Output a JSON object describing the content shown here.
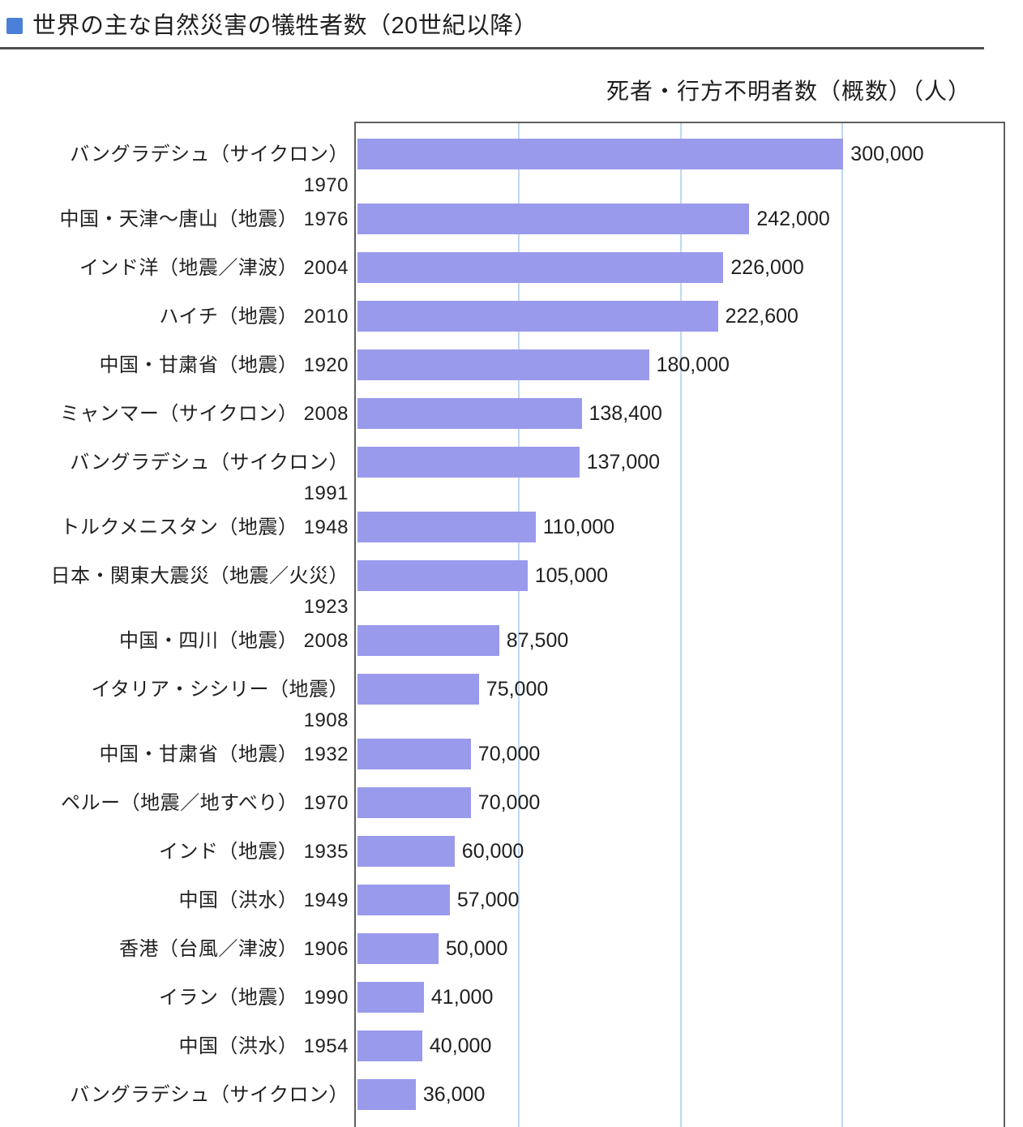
{
  "page": {
    "title": "世界の主な自然災害の犠牲者数（20世紀以降）",
    "axis_title": "死者・行方不明者数（概数）（人）"
  },
  "colors": {
    "bar": "#9a9aec",
    "gridline": "#bed9f3",
    "frame": "#606060",
    "title_bullet": "#4a80d8",
    "title_underline": "#4f4f4f",
    "text": "#212121"
  },
  "chart_data": {
    "type": "bar",
    "orientation": "horizontal",
    "title": "世界の主な自然災害の犠牲者数（20世紀以降）",
    "value_axis_label": "死者・行方不明者数（概数）（人）",
    "xlim": [
      0,
      400000
    ],
    "gridline_interval": 100000,
    "grid": true,
    "rows": [
      {
        "label": "バングラデシュ（サイクロン）",
        "year": "1970",
        "value": 300000,
        "value_label": "300,000",
        "two_line": true
      },
      {
        "label": "中国・天津〜唐山（地震）",
        "year": "1976",
        "value": 242000,
        "value_label": "242,000",
        "two_line": false
      },
      {
        "label": "インド洋（地震／津波）",
        "year": "2004",
        "value": 226000,
        "value_label": "226,000",
        "two_line": false
      },
      {
        "label": "ハイチ（地震）",
        "year": "2010",
        "value": 222600,
        "value_label": "222,600",
        "two_line": false
      },
      {
        "label": "中国・甘粛省（地震）",
        "year": "1920",
        "value": 180000,
        "value_label": "180,000",
        "two_line": false
      },
      {
        "label": "ミャンマー（サイクロン）",
        "year": "2008",
        "value": 138400,
        "value_label": "138,400",
        "two_line": false
      },
      {
        "label": "バングラデシュ（サイクロン）",
        "year": "1991",
        "value": 137000,
        "value_label": "137,000",
        "two_line": true
      },
      {
        "label": "トルクメニスタン（地震）",
        "year": "1948",
        "value": 110000,
        "value_label": "110,000",
        "two_line": false
      },
      {
        "label": "日本・関東大震災（地震／火災）",
        "year": "1923",
        "value": 105000,
        "value_label": "105,000",
        "two_line": true
      },
      {
        "label": "中国・四川（地震）",
        "year": "2008",
        "value": 87500,
        "value_label": "87,500",
        "two_line": false
      },
      {
        "label": "イタリア・シシリー（地震）",
        "year": "1908",
        "value": 75000,
        "value_label": "75,000",
        "two_line": true
      },
      {
        "label": "中国・甘粛省（地震）",
        "year": "1932",
        "value": 70000,
        "value_label": "70,000",
        "two_line": false
      },
      {
        "label": "ペルー（地震／地すべり）",
        "year": "1970",
        "value": 70000,
        "value_label": "70,000",
        "two_line": false
      },
      {
        "label": "インド（地震）",
        "year": "1935",
        "value": 60000,
        "value_label": "60,000",
        "two_line": false
      },
      {
        "label": "中国（洪水）",
        "year": "1949",
        "value": 57000,
        "value_label": "57,000",
        "two_line": false
      },
      {
        "label": "香港（台風／津波）",
        "year": "1906",
        "value": 50000,
        "value_label": "50,000",
        "two_line": false
      },
      {
        "label": "イラン（地震）",
        "year": "1990",
        "value": 41000,
        "value_label": "41,000",
        "two_line": false
      },
      {
        "label": "中国（洪水）",
        "year": "1954",
        "value": 40000,
        "value_label": "40,000",
        "two_line": false
      },
      {
        "label": "バングラデシュ（サイクロン）",
        "year": "",
        "value": 36000,
        "value_label": "36,000",
        "two_line": true
      }
    ]
  }
}
